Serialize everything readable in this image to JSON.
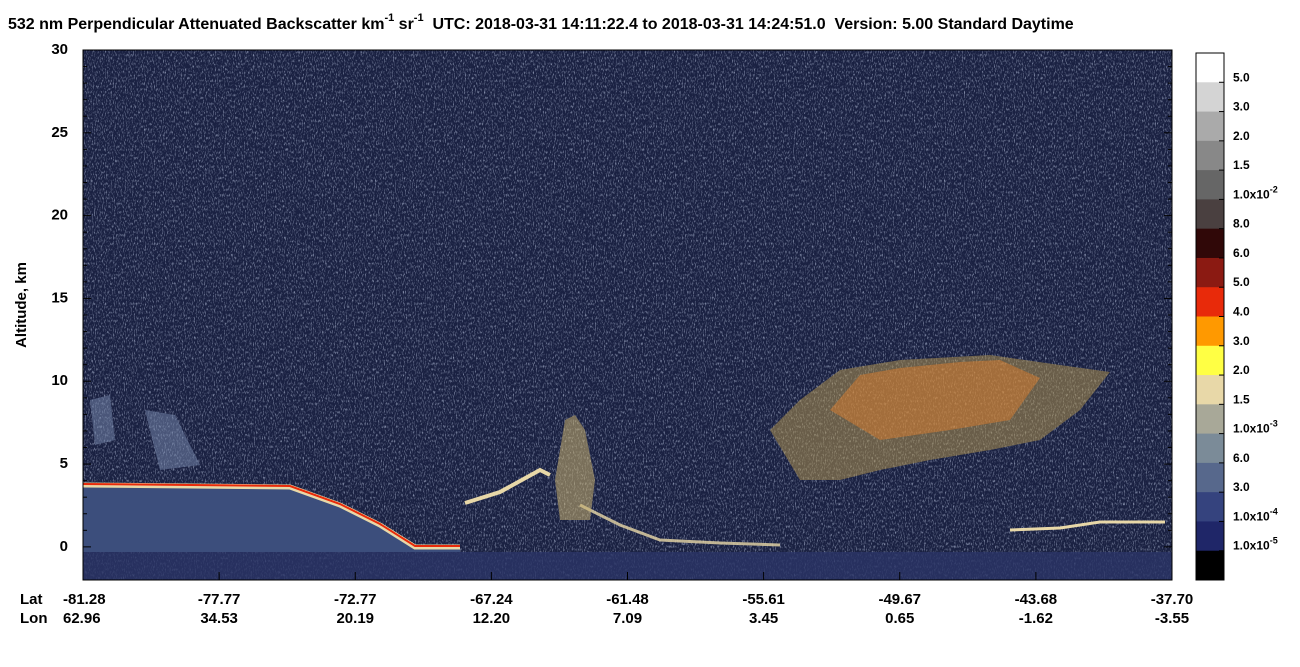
{
  "chart_data": {
    "type": "heatmap",
    "title_parts": [
      {
        "text": "532 nm Perpendicular Attenuated Backscatter km",
        "sup": "-1"
      },
      {
        "text": " sr",
        "sup": "-1"
      },
      {
        "text": "  UTC: 2018-03-31 14:11:22.4 to 2018-03-31 14:24:51.0  Version: 5.00 Standard Daytime"
      }
    ],
    "ylabel": "Altitude, km",
    "ylim": [
      -2,
      30
    ],
    "yticks": [
      0,
      5,
      10,
      15,
      20,
      25,
      30
    ],
    "x_row_labels": [
      "Lat",
      "Lon"
    ],
    "lat": [
      "-81.28",
      "-77.77",
      "-72.77",
      "-67.24",
      "-61.48",
      "-55.61",
      "-49.67",
      "-43.68",
      "-37.70"
    ],
    "lon": [
      "62.96",
      "34.53",
      "20.19",
      "12.20",
      "7.09",
      "3.45",
      "0.65",
      "-1.62",
      "-3.55"
    ],
    "colorbar": {
      "colors": [
        "#ffffff",
        "#d4d4d4",
        "#aaaaaa",
        "#888888",
        "#666666",
        "#4a4040",
        "#300808",
        "#8b1a12",
        "#e82a0a",
        "#ff9900",
        "#ffff44",
        "#e8d8a8",
        "#a8a898",
        "#7b8b98",
        "#57688c",
        "#35437e",
        "#1f2668",
        "#000000"
      ],
      "labels": [
        {
          "base": "5.0"
        },
        {
          "base": "3.0"
        },
        {
          "base": "2.0"
        },
        {
          "base": "1.5"
        },
        {
          "base": "1.0x10",
          "exp": "-2"
        },
        {
          "base": "8.0"
        },
        {
          "base": "6.0"
        },
        {
          "base": "5.0"
        },
        {
          "base": "4.0"
        },
        {
          "base": "3.0"
        },
        {
          "base": "2.0"
        },
        {
          "base": "1.5"
        },
        {
          "base": "1.0x10",
          "exp": "-3"
        },
        {
          "base": "6.0"
        },
        {
          "base": "3.0"
        },
        {
          "base": "1.0x10",
          "exp": "-4"
        },
        {
          "base": "1.0x10",
          "exp": "-5"
        }
      ]
    }
  }
}
